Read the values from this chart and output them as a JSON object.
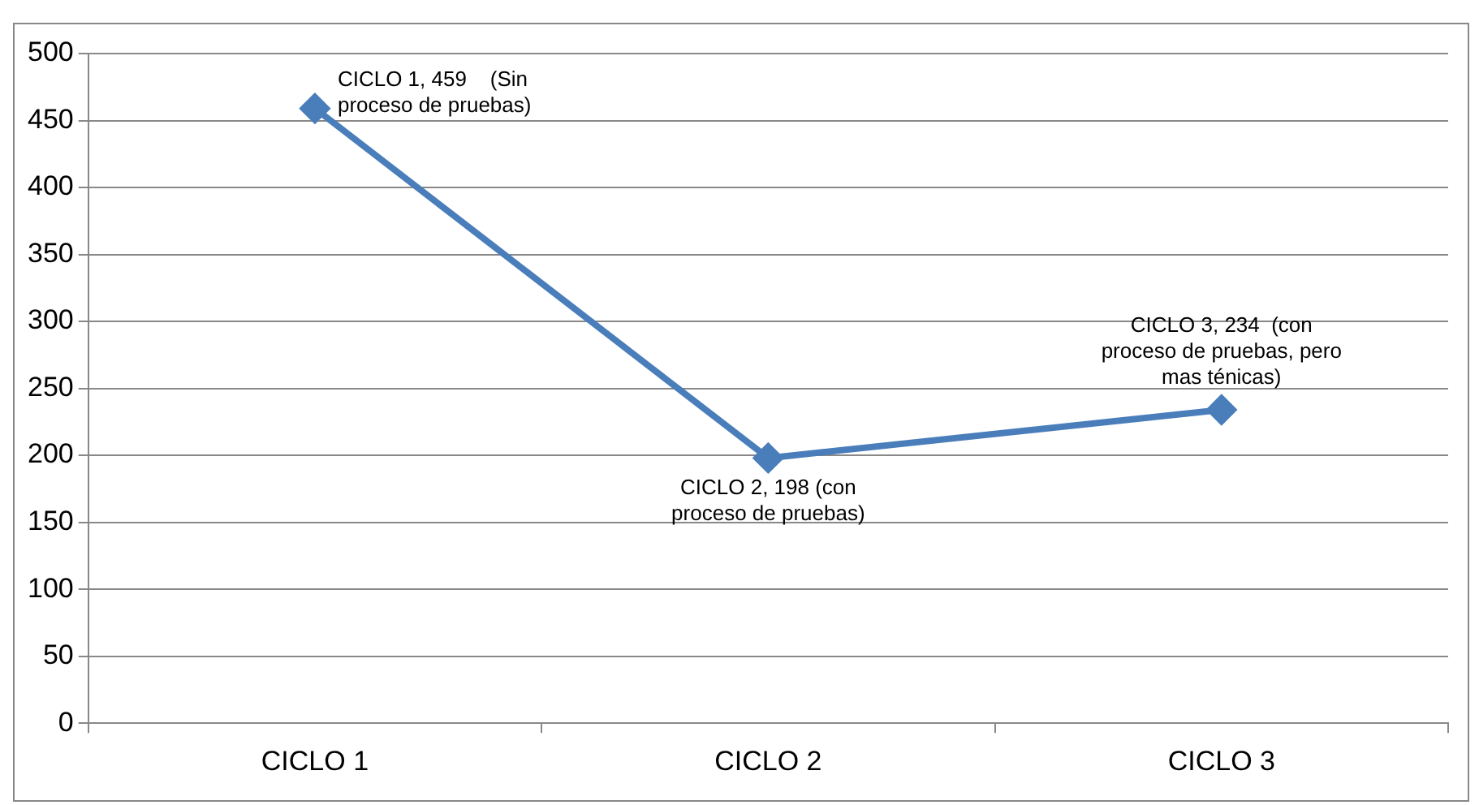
{
  "chart_data": {
    "type": "line",
    "categories": [
      "CICLO 1",
      "CICLO 2",
      "CICLO 3"
    ],
    "series": [
      {
        "color": "#4a7ebb",
        "values": [
          459,
          198,
          234
        ],
        "value_labels": [
          "CICLO 1, 459    (Sin proceso de pruebas)",
          "CICLO 2, 198 (con proceso de pruebas)",
          "CICLO 3, 234  (con proceso de pruebas, pero mas ténicas)"
        ]
      }
    ],
    "ylim": [
      0,
      500
    ],
    "yticks": [
      0,
      50,
      100,
      150,
      200,
      250,
      300,
      350,
      400,
      450,
      500
    ],
    "grid": "y",
    "legend": false,
    "marker": "diamond",
    "line_style": "solid"
  }
}
